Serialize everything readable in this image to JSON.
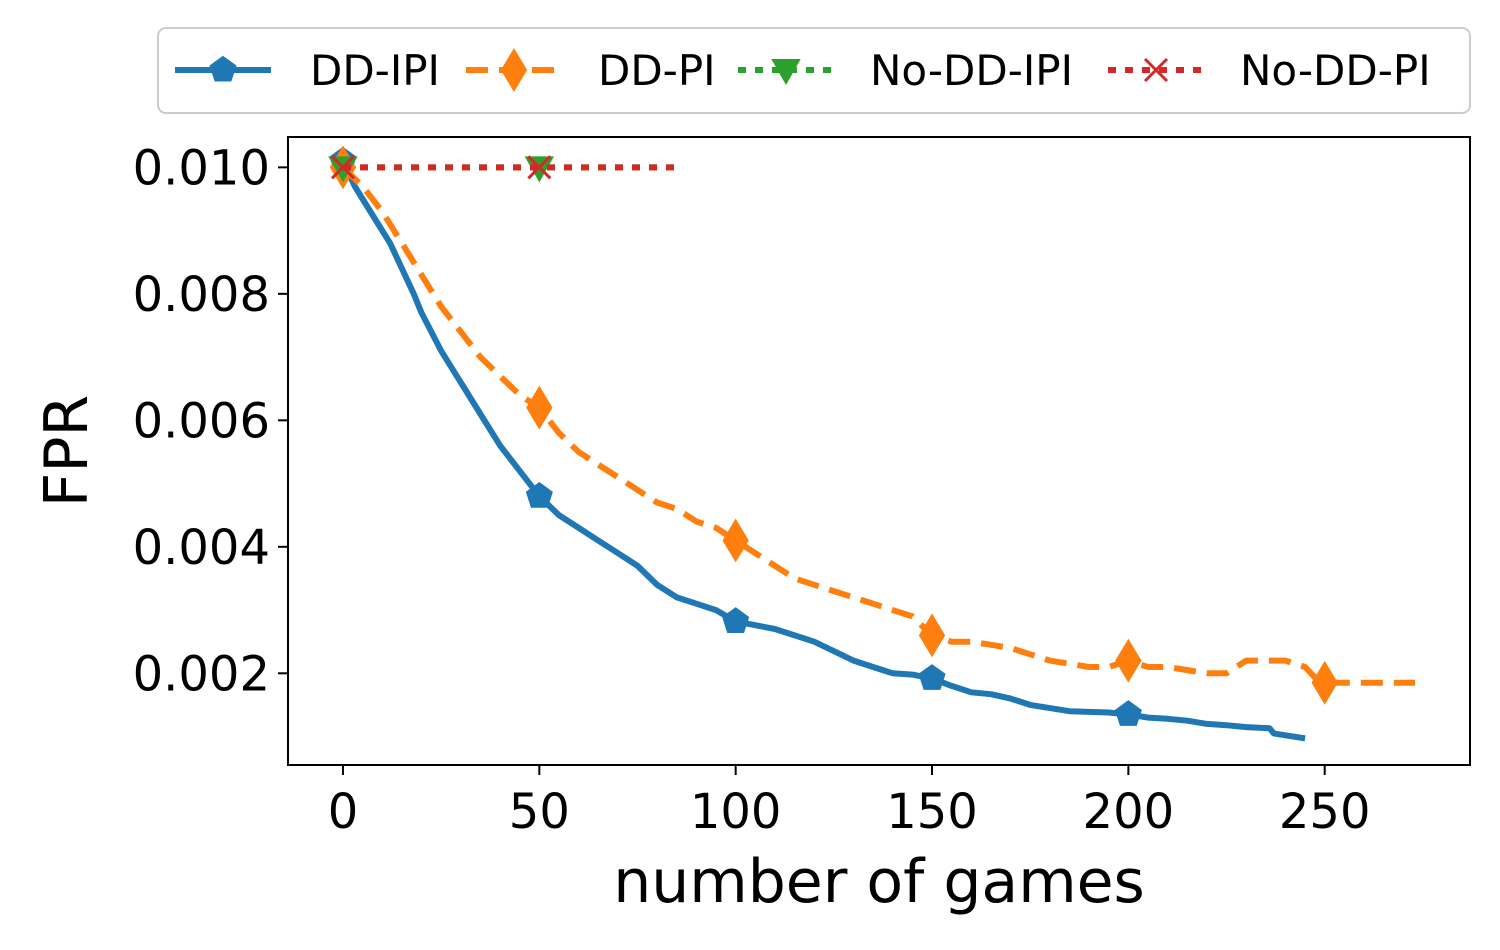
{
  "chart_data": {
    "type": "line",
    "title": "",
    "xlabel": "number of games",
    "ylabel": "FPR",
    "xlim": [
      -14,
      287
    ],
    "ylim": [
      0.00055,
      0.01048
    ],
    "xticks": [
      0,
      50,
      100,
      150,
      200,
      250
    ],
    "yticks": [
      0.002,
      0.004,
      0.006,
      0.008,
      0.01
    ],
    "xtick_labels": [
      "0",
      "50",
      "100",
      "150",
      "200",
      "250"
    ],
    "ytick_labels": [
      "0.002",
      "0.004",
      "0.006",
      "0.008",
      "0.010"
    ],
    "grid": false,
    "legend_position": "top, above plot",
    "series": [
      {
        "name": "DD-IPI",
        "color": "#1f77b4",
        "line_style": "solid",
        "marker": "pentagon",
        "marker_x": [
          0,
          50,
          100,
          150,
          200
        ],
        "x": [
          0,
          3,
          5,
          8,
          12,
          15,
          18,
          20,
          25,
          30,
          35,
          40,
          45,
          50,
          55,
          60,
          65,
          70,
          75,
          80,
          85,
          90,
          95,
          100,
          110,
          120,
          130,
          135,
          140,
          145,
          150,
          155,
          160,
          165,
          170,
          175,
          180,
          185,
          190,
          195,
          200,
          205,
          210,
          215,
          220,
          225,
          230,
          236,
          237,
          240,
          245
        ],
        "y": [
          0.0101,
          0.0097,
          0.0095,
          0.0092,
          0.0088,
          0.0084,
          0.008,
          0.0077,
          0.0071,
          0.0066,
          0.0061,
          0.0056,
          0.0052,
          0.0048,
          0.0045,
          0.0043,
          0.0041,
          0.0039,
          0.0037,
          0.0034,
          0.0032,
          0.0031,
          0.003,
          0.00282,
          0.0027,
          0.0025,
          0.0022,
          0.0021,
          0.002,
          0.00198,
          0.00192,
          0.0018,
          0.0017,
          0.00167,
          0.0016,
          0.0015,
          0.00145,
          0.0014,
          0.00139,
          0.00138,
          0.00135,
          0.0013,
          0.00128,
          0.00125,
          0.0012,
          0.00118,
          0.00115,
          0.00113,
          0.00105,
          0.00102,
          0.00097
        ]
      },
      {
        "name": "DD-PI",
        "color": "#ff7f0e",
        "line_style": "dashed",
        "marker": "diamond",
        "marker_x": [
          0,
          50,
          100,
          150,
          200,
          250
        ],
        "x": [
          0,
          5,
          10,
          15,
          20,
          25,
          30,
          35,
          40,
          45,
          50,
          55,
          60,
          65,
          70,
          75,
          80,
          85,
          90,
          95,
          100,
          105,
          110,
          115,
          120,
          125,
          130,
          135,
          140,
          145,
          150,
          155,
          160,
          165,
          170,
          175,
          180,
          185,
          190,
          195,
          200,
          205,
          210,
          215,
          220,
          225,
          230,
          235,
          240,
          245,
          248,
          250,
          255,
          260,
          265,
          270,
          273
        ],
        "y": [
          0.01,
          0.0097,
          0.0093,
          0.0088,
          0.0083,
          0.0078,
          0.0074,
          0.007,
          0.0067,
          0.0064,
          0.0062,
          0.0058,
          0.0055,
          0.0053,
          0.0051,
          0.0049,
          0.0047,
          0.0046,
          0.0044,
          0.0043,
          0.0041,
          0.0039,
          0.0037,
          0.0035,
          0.0034,
          0.0033,
          0.0032,
          0.0031,
          0.003,
          0.0029,
          0.0026,
          0.0025,
          0.0025,
          0.00245,
          0.0024,
          0.0023,
          0.0022,
          0.00215,
          0.0021,
          0.0021,
          0.0022,
          0.0021,
          0.0021,
          0.00205,
          0.002,
          0.002,
          0.0022,
          0.0022,
          0.0022,
          0.0021,
          0.0019,
          0.00185,
          0.00185,
          0.00185,
          0.00185,
          0.00185,
          0.00185
        ]
      },
      {
        "name": "No-DD-IPI",
        "color": "#2ca02c",
        "line_style": "dotted",
        "marker": "triangle-down",
        "marker_x": [
          0,
          50
        ],
        "x": [
          0,
          10,
          20,
          30,
          40,
          50,
          60,
          70,
          80,
          85
        ],
        "y": [
          0.01,
          0.01,
          0.01,
          0.01,
          0.01,
          0.01,
          0.01,
          0.01,
          0.01,
          0.01
        ]
      },
      {
        "name": "No-DD-PI",
        "color": "#d62728",
        "line_style": "dotted",
        "marker": "x",
        "marker_x": [
          0,
          50
        ],
        "x": [
          0,
          10,
          20,
          30,
          40,
          50,
          60,
          70,
          80,
          85
        ],
        "y": [
          0.01,
          0.01,
          0.01,
          0.01,
          0.01,
          0.01,
          0.01,
          0.01,
          0.01,
          0.01
        ]
      }
    ]
  }
}
